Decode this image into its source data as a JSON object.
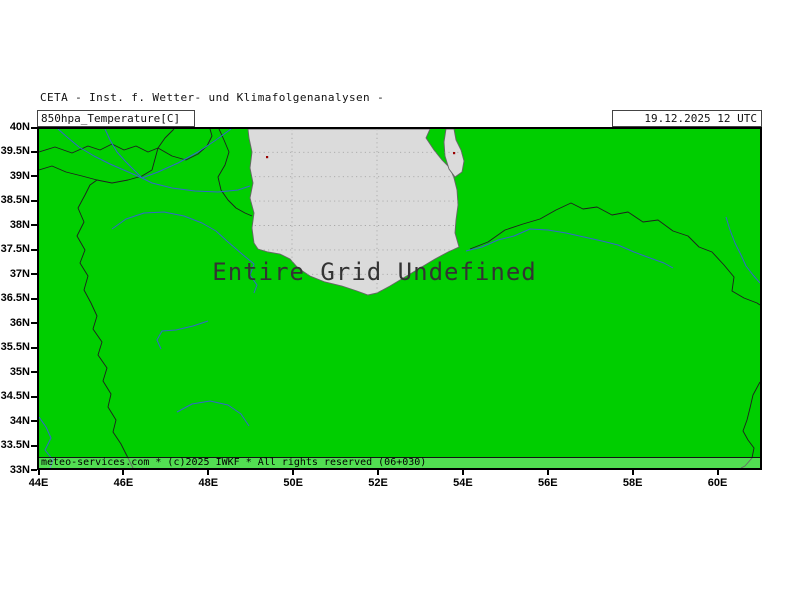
{
  "header": {
    "model_title": "CETA - Inst. f. Wetter- und Klimafolgenanalysen -",
    "param_label": "850hpa_Temperature[C]",
    "datetime_label": "19.12.2025 12 UTC"
  },
  "map": {
    "status_message": "Entire Grid Undefined",
    "copyright_notice": "meteo-services.com * (c)2025 IWKF * All rights reserved (06+030)"
  },
  "axes": {
    "y_ticks": [
      "40N",
      "39.5N",
      "39N",
      "38.5N",
      "38N",
      "37.5N",
      "37N",
      "36.5N",
      "36N",
      "35.5N",
      "35N",
      "34.5N",
      "34N",
      "33.5N",
      "33N"
    ],
    "x_ticks": [
      "44E",
      "46E",
      "48E",
      "50E",
      "52E",
      "54E",
      "56E",
      "58E",
      "60E"
    ]
  },
  "colors": {
    "land": "#00CE00",
    "sea": "#DBDBDB",
    "river": "#3366CC",
    "border": "#1F1F1F",
    "coast": "#666666",
    "frame": "#000000",
    "grid": "#A8A8A8"
  }
}
